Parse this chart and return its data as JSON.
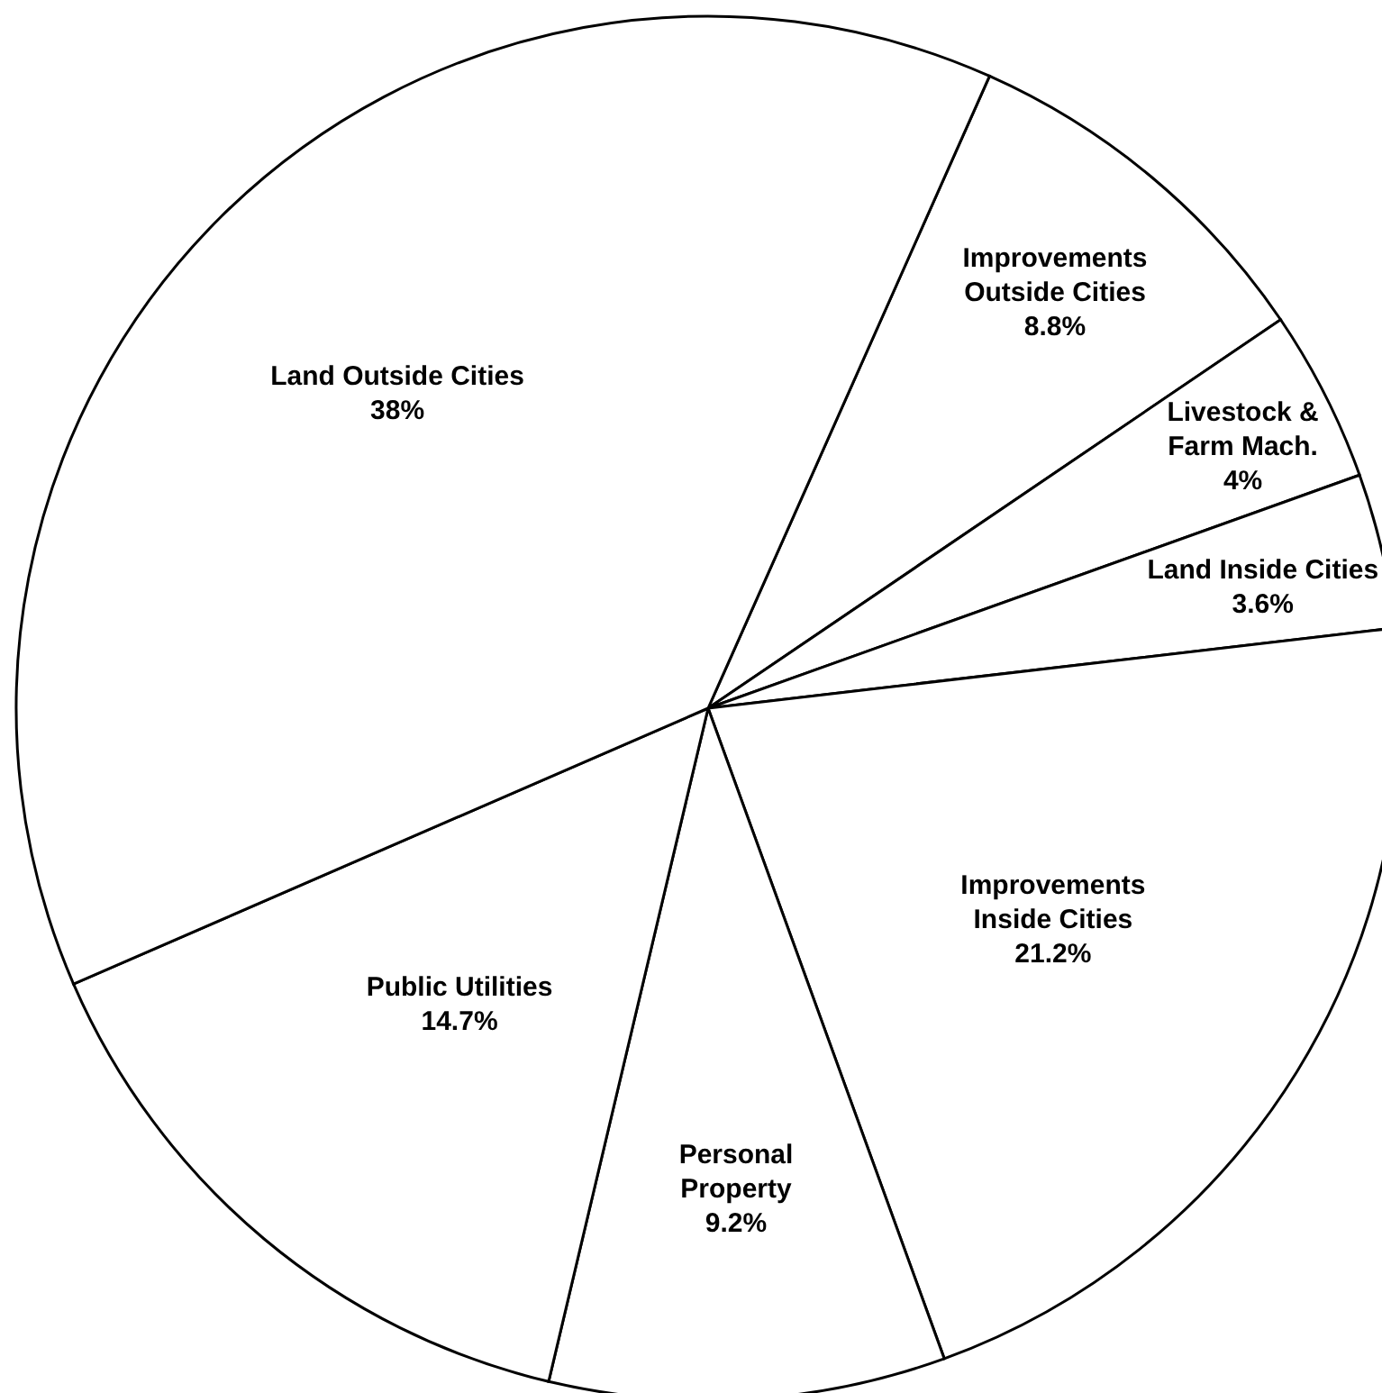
{
  "chart_data": {
    "type": "pie",
    "categories": [
      "Improvements Outside Cities",
      "Livestock & Farm Mach.",
      "Land Inside Cities",
      "Improvements Inside Cities",
      "Personal Property",
      "Public Utilities",
      "Land Outside Cities"
    ],
    "values": [
      8.8,
      4,
      3.6,
      21.2,
      9.2,
      14.7,
      38
    ],
    "value_labels": [
      "8.8%",
      "4%",
      "3.6%",
      "21.2%",
      "9.2%",
      "14.7%",
      "38%"
    ],
    "colors": [
      "#ffffff",
      "#ffffff",
      "#ffffff",
      "#ffffff",
      "#ffffff",
      "#ffffff",
      "#ffffff"
    ]
  }
}
